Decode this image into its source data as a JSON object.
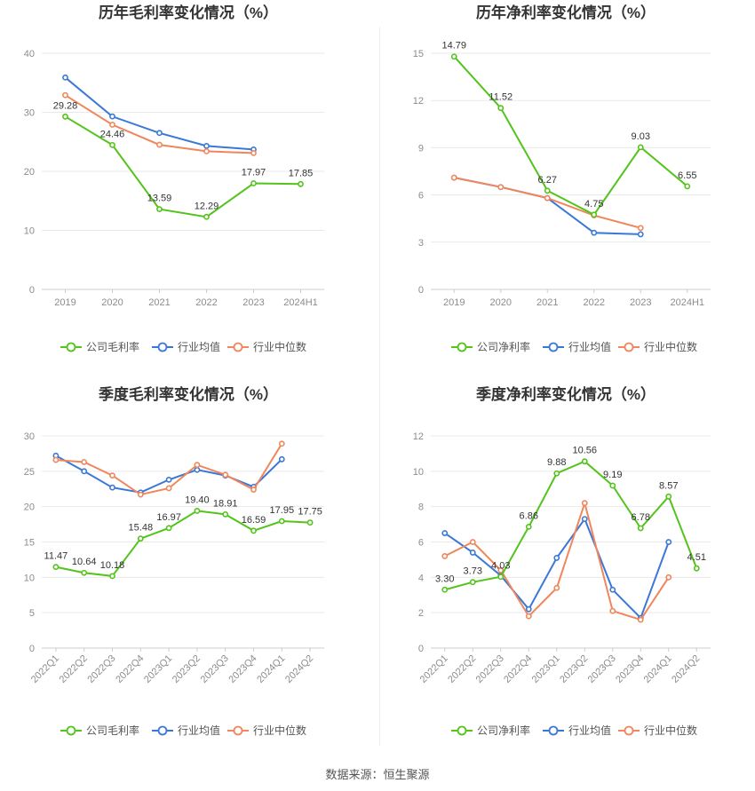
{
  "footer": {
    "source": "数据来源：恒生聚源"
  },
  "legend_colors": {
    "company": "#52c41a",
    "avg": "#3a78d8",
    "median": "#f0865c"
  },
  "chart_data": [
    {
      "type": "line",
      "title": "历年毛利率变化情况（%）",
      "categories": [
        "2019",
        "2020",
        "2021",
        "2022",
        "2023",
        "2024H1"
      ],
      "ylim": [
        0,
        40
      ],
      "yticks": [
        0,
        10,
        20,
        30,
        40
      ],
      "grid": true,
      "legend_position": "bottom",
      "series": [
        {
          "name": "公司毛利率",
          "color": "#52c41a",
          "values": [
            29.28,
            24.46,
            13.59,
            12.29,
            17.97,
            17.85
          ],
          "labels": [
            "29.28",
            "24.46",
            "13.59",
            "12.29",
            "17.97",
            "17.85"
          ]
        },
        {
          "name": "行业均值",
          "color": "#3a78d8",
          "values": [
            35.9,
            29.3,
            26.5,
            24.3,
            23.7,
            null
          ]
        },
        {
          "name": "行业中位数",
          "color": "#f0865c",
          "values": [
            32.9,
            27.9,
            24.5,
            23.4,
            23.1,
            null
          ]
        }
      ]
    },
    {
      "type": "line",
      "title": "历年净利率变化情况（%）",
      "categories": [
        "2019",
        "2020",
        "2021",
        "2022",
        "2023",
        "2024H1"
      ],
      "ylim": [
        0,
        15
      ],
      "yticks": [
        0,
        3,
        6,
        9,
        12,
        15
      ],
      "grid": true,
      "legend_position": "bottom",
      "series": [
        {
          "name": "公司净利率",
          "color": "#52c41a",
          "values": [
            14.79,
            11.52,
            6.27,
            4.75,
            9.03,
            6.55
          ],
          "labels": [
            "14.79",
            "11.52",
            "6.27",
            "4.75",
            "9.03",
            "6.55"
          ]
        },
        {
          "name": "行业均值",
          "color": "#3a78d8",
          "values": [
            7.1,
            6.5,
            5.8,
            3.6,
            3.5,
            null
          ]
        },
        {
          "name": "行业中位数",
          "color": "#f0865c",
          "values": [
            7.1,
            6.5,
            5.8,
            4.7,
            3.9,
            null
          ]
        }
      ]
    },
    {
      "type": "line",
      "title": "季度毛利率变化情况（%）",
      "categories": [
        "2022Q1",
        "2022Q2",
        "2022Q3",
        "2022Q4",
        "2023Q1",
        "2023Q2",
        "2023Q3",
        "2023Q4",
        "2024Q1",
        "2024Q2"
      ],
      "ylim": [
        0,
        30
      ],
      "yticks": [
        0,
        5,
        10,
        15,
        20,
        25,
        30
      ],
      "grid": true,
      "legend_position": "bottom",
      "series": [
        {
          "name": "公司毛利率",
          "color": "#52c41a",
          "values": [
            11.47,
            10.64,
            10.18,
            15.48,
            16.97,
            19.4,
            18.91,
            16.59,
            17.95,
            17.75
          ],
          "labels": [
            "11.47",
            "10.64",
            "10.18",
            "15.48",
            "16.97",
            "19.40",
            "18.91",
            "16.59",
            "17.95",
            "17.75"
          ]
        },
        {
          "name": "行业均值",
          "color": "#3a78d8",
          "values": [
            27.2,
            25.0,
            22.7,
            22.0,
            23.8,
            25.2,
            24.4,
            22.8,
            26.7,
            null
          ]
        },
        {
          "name": "行业中位数",
          "color": "#f0865c",
          "values": [
            26.6,
            26.3,
            24.4,
            21.7,
            22.6,
            25.9,
            24.5,
            22.4,
            28.9,
            null
          ]
        }
      ]
    },
    {
      "type": "line",
      "title": "季度净利率变化情况（%）",
      "categories": [
        "2022Q1",
        "2022Q2",
        "2022Q3",
        "2022Q4",
        "2023Q1",
        "2023Q2",
        "2023Q3",
        "2023Q4",
        "2024Q1",
        "2024Q2"
      ],
      "ylim": [
        0,
        12
      ],
      "yticks": [
        0,
        2,
        4,
        6,
        8,
        10,
        12
      ],
      "grid": true,
      "legend_position": "bottom",
      "series": [
        {
          "name": "公司净利率",
          "color": "#52c41a",
          "values": [
            3.3,
            3.73,
            4.03,
            6.86,
            9.88,
            10.56,
            9.19,
            6.78,
            8.57,
            4.51
          ],
          "labels": [
            "3.30",
            "3.73",
            "4.03",
            "6.86",
            "9.88",
            "10.56",
            "9.19",
            "6.78",
            "8.57",
            "4.51"
          ]
        },
        {
          "name": "行业均值",
          "color": "#3a78d8",
          "values": [
            6.5,
            5.4,
            4.1,
            2.2,
            5.1,
            7.3,
            3.3,
            1.7,
            6.0,
            null
          ]
        },
        {
          "name": "行业中位数",
          "color": "#f0865c",
          "values": [
            5.2,
            6.0,
            4.4,
            1.8,
            3.4,
            8.2,
            2.1,
            1.6,
            4.0,
            null
          ]
        }
      ]
    }
  ]
}
